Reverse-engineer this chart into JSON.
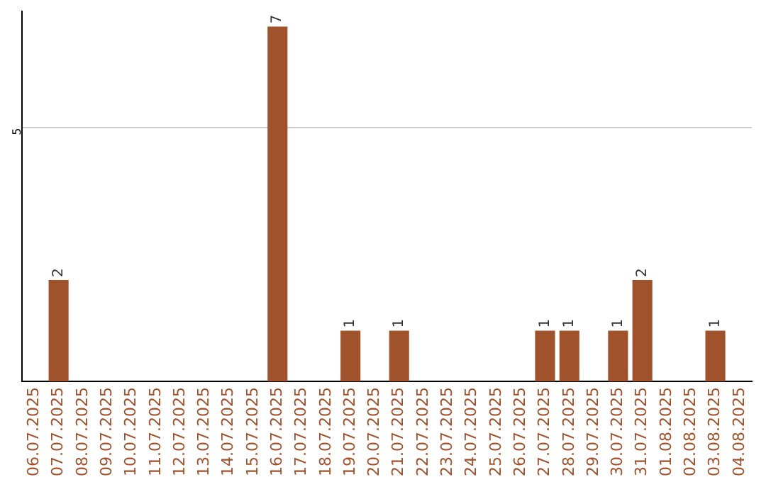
{
  "chart_data": {
    "type": "bar",
    "categories": [
      "06.07.2025",
      "07.07.2025",
      "08.07.2025",
      "09.07.2025",
      "10.07.2025",
      "11.07.2025",
      "12.07.2025",
      "13.07.2025",
      "14.07.2025",
      "15.07.2025",
      "16.07.2025",
      "17.07.2025",
      "18.07.2025",
      "19.07.2025",
      "20.07.2025",
      "21.07.2025",
      "22.07.2025",
      "23.07.2025",
      "24.07.2025",
      "25.07.2025",
      "26.07.2025",
      "27.07.2025",
      "28.07.2025",
      "29.07.2025",
      "30.07.2025",
      "31.07.2025",
      "01.08.2025",
      "02.08.2025",
      "03.08.2025",
      "04.08.2025"
    ],
    "values": [
      0,
      2,
      0,
      0,
      0,
      0,
      0,
      0,
      0,
      0,
      7,
      0,
      0,
      1,
      0,
      1,
      0,
      0,
      0,
      0,
      0,
      1,
      1,
      0,
      1,
      2,
      0,
      0,
      1,
      0
    ],
    "value_labels": [
      null,
      "2",
      null,
      null,
      null,
      null,
      null,
      null,
      null,
      null,
      "7",
      null,
      null,
      "1",
      null,
      "1",
      null,
      null,
      null,
      null,
      null,
      "1",
      "1",
      null,
      "1",
      "2",
      null,
      null,
      "1",
      null
    ],
    "color": "#a0522d",
    "ylim": [
      0,
      7.3
    ],
    "yticks": [
      5
    ],
    "grid": "y",
    "legend": false
  }
}
